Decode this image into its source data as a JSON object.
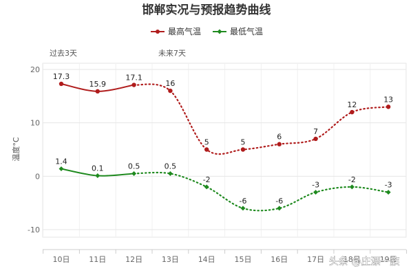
{
  "chart_data": {
    "type": "line",
    "title": "邯郸实况与预报趋势曲线",
    "categories": [
      "10日",
      "11日",
      "12日",
      "13日",
      "14日",
      "15日",
      "16日",
      "17日",
      "18日",
      "19日"
    ],
    "series": [
      {
        "name": "最高气温",
        "color": "#b01c1c",
        "values": [
          17.3,
          15.9,
          17.1,
          16,
          5,
          5,
          6,
          7,
          12,
          13
        ]
      },
      {
        "name": "最低气温",
        "color": "#1f8a1f",
        "values": [
          1.4,
          0.1,
          0.5,
          0.5,
          -2,
          -6,
          -6,
          -3,
          -2,
          -3
        ]
      }
    ],
    "observed_count": 3,
    "band_labels": [
      "过去3天",
      "未来7天"
    ],
    "ylabel": "温度°C",
    "ylim": [
      -10,
      20
    ],
    "yticks": [
      -10,
      0,
      10,
      20
    ],
    "grid": true,
    "legend": "top-center",
    "line_style": {
      "observed": "solid",
      "forecast": "dotted"
    }
  },
  "watermark": "头条 @庄漂一族"
}
